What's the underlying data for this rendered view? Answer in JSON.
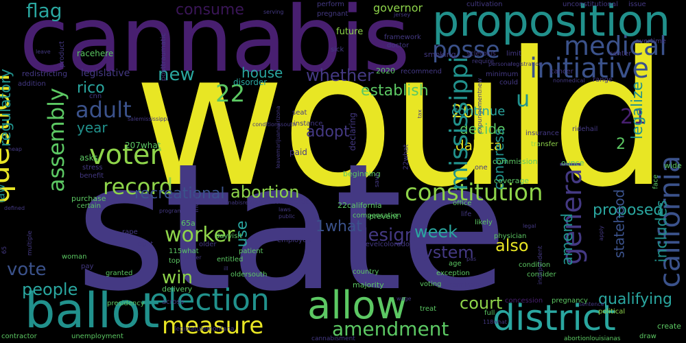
{
  "palette": {
    "yellow": "#e8e624",
    "lime": "#8ed44a",
    "green": "#5cc863",
    "teal": "#21918c",
    "cyan": "#2aa7a0",
    "blue": "#3b528b",
    "indigo": "#443983",
    "purple": "#481f70",
    "darkpurple": "#3a1657"
  },
  "words": [
    {
      "text": "would",
      "color": "yellow"
    },
    {
      "text": "state",
      "color": "indigo"
    },
    {
      "text": "cannabis",
      "color": "purple"
    },
    {
      "text": "proposition",
      "color": "teal"
    },
    {
      "text": "ballot",
      "color": "teal"
    },
    {
      "text": "question",
      "color": "yellow"
    },
    {
      "text": "allow",
      "color": "yellow"
    },
    {
      "text": "district",
      "color": "green"
    },
    {
      "text": "election",
      "color": "cyan"
    },
    {
      "text": "measure",
      "color": "teal"
    },
    {
      "text": "amendment",
      "color": "yellow"
    },
    {
      "text": "california",
      "color": "green"
    },
    {
      "text": "general",
      "color": "blue"
    },
    {
      "text": "assembly",
      "color": "indigo"
    },
    {
      "text": "initiative",
      "color": "green"
    },
    {
      "text": "medical",
      "color": "blue"
    },
    {
      "text": "voter",
      "color": "blue"
    },
    {
      "text": "flag",
      "color": "lime"
    },
    {
      "text": "constitution",
      "color": "cyan"
    },
    {
      "text": "abortion",
      "color": "lime"
    },
    {
      "text": "mississippi",
      "color": "lime"
    },
    {
      "text": "adult",
      "color": "teal"
    },
    {
      "text": "posse",
      "color": "blue"
    },
    {
      "text": "new",
      "color": "blue"
    },
    {
      "text": "whether",
      "color": "cyan"
    },
    {
      "text": "establish",
      "color": "indigo"
    },
    {
      "text": "vote",
      "color": "green"
    },
    {
      "text": "people",
      "color": "blue"
    },
    {
      "text": "record",
      "color": "cyan"
    },
    {
      "text": "22",
      "color": "lime"
    },
    {
      "text": "u",
      "color": "green"
    },
    {
      "text": "21",
      "color": "teal"
    },
    {
      "text": "2",
      "color": "purple"
    },
    {
      "text": "20",
      "color": "green"
    },
    {
      "text": "rico",
      "color": "yellow"
    },
    {
      "text": "house",
      "color": "cyan"
    },
    {
      "text": "consume",
      "color": "cyan"
    },
    {
      "text": "continue",
      "color": "darkpurple"
    },
    {
      "text": "decide",
      "color": "cyan"
    },
    {
      "text": "dakota",
      "color": "green"
    },
    {
      "text": "adopt",
      "color": "yellow"
    },
    {
      "text": "year",
      "color": "indigo"
    },
    {
      "text": "congress",
      "color": "teal"
    },
    {
      "text": "legalize",
      "color": "teal"
    },
    {
      "text": "regulatory",
      "color": "teal"
    },
    {
      "text": "recreational",
      "color": "teal"
    },
    {
      "text": "worker",
      "color": "blue"
    },
    {
      "text": "win",
      "color": "lime"
    },
    {
      "text": "use",
      "color": "lime"
    },
    {
      "text": "design",
      "color": "cyan"
    },
    {
      "text": "week",
      "color": "indigo"
    },
    {
      "text": "system",
      "color": "cyan"
    },
    {
      "text": "also",
      "color": "indigo"
    },
    {
      "text": "amend",
      "color": "yellow"
    },
    {
      "text": "statehood",
      "color": "teal"
    },
    {
      "text": "proposed",
      "color": "blue"
    },
    {
      "text": "includes",
      "color": "cyan"
    },
    {
      "text": "qualifying",
      "color": "teal"
    },
    {
      "text": "court",
      "color": "cyan"
    },
    {
      "text": "law",
      "color": "lime"
    },
    {
      "text": "1what",
      "color": "teal"
    },
    {
      "text": "1",
      "color": "blue"
    },
    {
      "text": "governor",
      "color": "indigo"
    },
    {
      "text": "legislative",
      "color": "lime"
    },
    {
      "text": "redistricting",
      "color": "indigo"
    },
    {
      "text": "addition",
      "color": "indigo"
    },
    {
      "text": "cnn",
      "color": "indigo"
    },
    {
      "text": "racehere",
      "color": "indigo"
    },
    {
      "text": "future",
      "color": "green"
    },
    {
      "text": "disorder",
      "color": "lime"
    },
    {
      "text": "posttraumatic",
      "color": "cyan"
    },
    {
      "text": "product",
      "color": "indigo"
    },
    {
      "text": "perform",
      "color": "indigo"
    },
    {
      "text": "pregnant",
      "color": "indigo"
    },
    {
      "text": "cultivation",
      "color": "indigo"
    },
    {
      "text": "unconstitutional",
      "color": "indigo"
    },
    {
      "text": "issue",
      "color": "indigo"
    },
    {
      "text": "framework",
      "color": "indigo"
    },
    {
      "text": "doctor",
      "color": "indigo"
    },
    {
      "text": "smoking",
      "color": "indigo"
    },
    {
      "text": "sclerosis",
      "color": "indigo"
    },
    {
      "text": "limit",
      "color": "indigo"
    },
    {
      "text": "center",
      "color": "indigo"
    },
    {
      "text": "2020",
      "color": "indigo"
    },
    {
      "text": "recommend",
      "color": "green"
    },
    {
      "text": "minimum",
      "color": "indigo"
    },
    {
      "text": "cancer",
      "color": "indigo"
    },
    {
      "text": "range",
      "color": "indigo"
    },
    {
      "text": "overtime",
      "color": "indigo"
    },
    {
      "text": "sick",
      "color": "indigo"
    },
    {
      "text": "could",
      "color": "indigo"
    },
    {
      "text": "seat",
      "color": "indigo"
    },
    {
      "text": "instance",
      "color": "indigo"
    },
    {
      "text": "ridehail",
      "color": "indigo"
    },
    {
      "text": "insurance",
      "color": "indigo"
    },
    {
      "text": "transfer",
      "color": "indigo"
    },
    {
      "text": "207what",
      "color": "lime"
    },
    {
      "text": "asks",
      "color": "green"
    },
    {
      "text": "paid",
      "color": "green"
    },
    {
      "text": "declaring",
      "color": "indigo"
    },
    {
      "text": "commission",
      "color": "indigo"
    },
    {
      "text": "coverage",
      "color": "green"
    },
    {
      "text": "ounce",
      "color": "green"
    },
    {
      "text": "wide",
      "color": "green"
    },
    {
      "text": "face",
      "color": "green"
    },
    {
      "text": "benefit",
      "color": "green"
    },
    {
      "text": "stress",
      "color": "indigo"
    },
    {
      "text": "incest",
      "color": "indigo"
    },
    {
      "text": "22what",
      "color": "indigo"
    },
    {
      "text": "beginning",
      "color": "indigo"
    },
    {
      "text": "one",
      "color": "green"
    },
    {
      "text": "save",
      "color": "indigo"
    },
    {
      "text": "purchase",
      "color": "indigo"
    },
    {
      "text": "22california",
      "color": "green"
    },
    {
      "text": "prevent",
      "color": "green"
    },
    {
      "text": "office",
      "color": "green"
    },
    {
      "text": "considered",
      "color": "green"
    },
    {
      "text": "compensation",
      "color": "indigo"
    },
    {
      "text": "life",
      "color": "green"
    },
    {
      "text": "likely",
      "color": "indigo"
    },
    {
      "text": "65a",
      "color": "green"
    },
    {
      "text": "rape",
      "color": "green"
    },
    {
      "text": "dayvisit",
      "color": "indigo"
    },
    {
      "text": "older",
      "color": "green"
    },
    {
      "text": "patient",
      "color": "indigo"
    },
    {
      "text": "employee",
      "color": "green"
    },
    {
      "text": "levelcolorado",
      "color": "indigo"
    },
    {
      "text": "physician",
      "color": "indigo"
    },
    {
      "text": "115what",
      "color": "green"
    },
    {
      "text": "top",
      "color": "green"
    },
    {
      "text": "entitled",
      "color": "green"
    },
    {
      "text": "ill",
      "color": "green"
    },
    {
      "text": "oldersouth",
      "color": "indigo"
    },
    {
      "text": "country",
      "color": "green"
    },
    {
      "text": "exception",
      "color": "green"
    },
    {
      "text": "consider",
      "color": "green"
    },
    {
      "text": "condition",
      "color": "green"
    },
    {
      "text": "age",
      "color": "green"
    },
    {
      "text": "independent",
      "color": "green"
    },
    {
      "text": "woman",
      "color": "indigo"
    },
    {
      "text": "pay",
      "color": "green"
    },
    {
      "text": "granted",
      "color": "indigo"
    },
    {
      "text": "delivery",
      "color": "green"
    },
    {
      "text": "majority",
      "color": "green"
    },
    {
      "text": "voting",
      "color": "green"
    },
    {
      "text": "concession",
      "color": "green"
    },
    {
      "text": "political",
      "color": "purple"
    },
    {
      "text": "presidency",
      "color": "lime"
    },
    {
      "text": "across",
      "color": "green"
    },
    {
      "text": "treat",
      "color": "indigo"
    },
    {
      "text": "pregnancy",
      "color": "green"
    },
    {
      "text": "full",
      "color": "green"
    },
    {
      "text": "create",
      "color": "green"
    },
    {
      "text": "draw",
      "color": "green"
    },
    {
      "text": "contractor",
      "color": "green"
    },
    {
      "text": "unemployment",
      "color": "green"
    },
    {
      "text": "abortionlouisianas",
      "color": "green"
    },
    {
      "text": "cannabisment",
      "color": "green"
    },
    {
      "text": "legislaturemontana",
      "color": "indigo"
    },
    {
      "text": "certain",
      "color": "indigo"
    },
    {
      "text": "65",
      "color": "green"
    },
    {
      "text": "multiple",
      "color": "indigo"
    },
    {
      "text": "eight",
      "color": "indigo"
    },
    {
      "text": "driver",
      "color": "indigo"
    },
    {
      "text": "program",
      "color": "indigo"
    },
    {
      "text": "cannabisrelated",
      "color": "indigo"
    },
    {
      "text": "laws",
      "color": "indigo"
    },
    {
      "text": "public",
      "color": "indigo"
    },
    {
      "text": "leave",
      "color": "indigo"
    },
    {
      "text": "heap",
      "color": "indigo"
    },
    {
      "text": "defined",
      "color": "indigo"
    },
    {
      "text": "serving",
      "color": "indigo"
    },
    {
      "text": "jersey",
      "color": "indigo"
    },
    {
      "text": "registration",
      "color": "indigo"
    },
    {
      "text": "nonmedical",
      "color": "indigo"
    },
    {
      "text": "personal",
      "color": "indigo"
    },
    {
      "text": "require",
      "color": "indigo"
    },
    {
      "text": "pas",
      "color": "indigo"
    },
    {
      "text": "legal",
      "color": "indigo"
    },
    {
      "text": "apply",
      "color": "indigo"
    },
    {
      "text": "terminally",
      "color": "indigo"
    },
    {
      "text": "wage",
      "color": "indigo"
    },
    {
      "text": "sentence",
      "color": "indigo"
    },
    {
      "text": "118what",
      "color": "indigo"
    },
    {
      "text": "expungementnew",
      "color": "indigo"
    },
    {
      "text": "leavemarijuanaarizona",
      "color": "indigo"
    },
    {
      "text": "conditionssouth",
      "color": "indigo"
    },
    {
      "text": "salemississippi",
      "color": "indigo"
    },
    {
      "text": "tax",
      "color": "indigo"
    },
    {
      "text": "legislator",
      "color": "indigo"
    },
    {
      "text": "penaltiescalifornia",
      "color": "indigo"
    },
    {
      "text": "commission",
      "color": "indigo"
    }
  ]
}
